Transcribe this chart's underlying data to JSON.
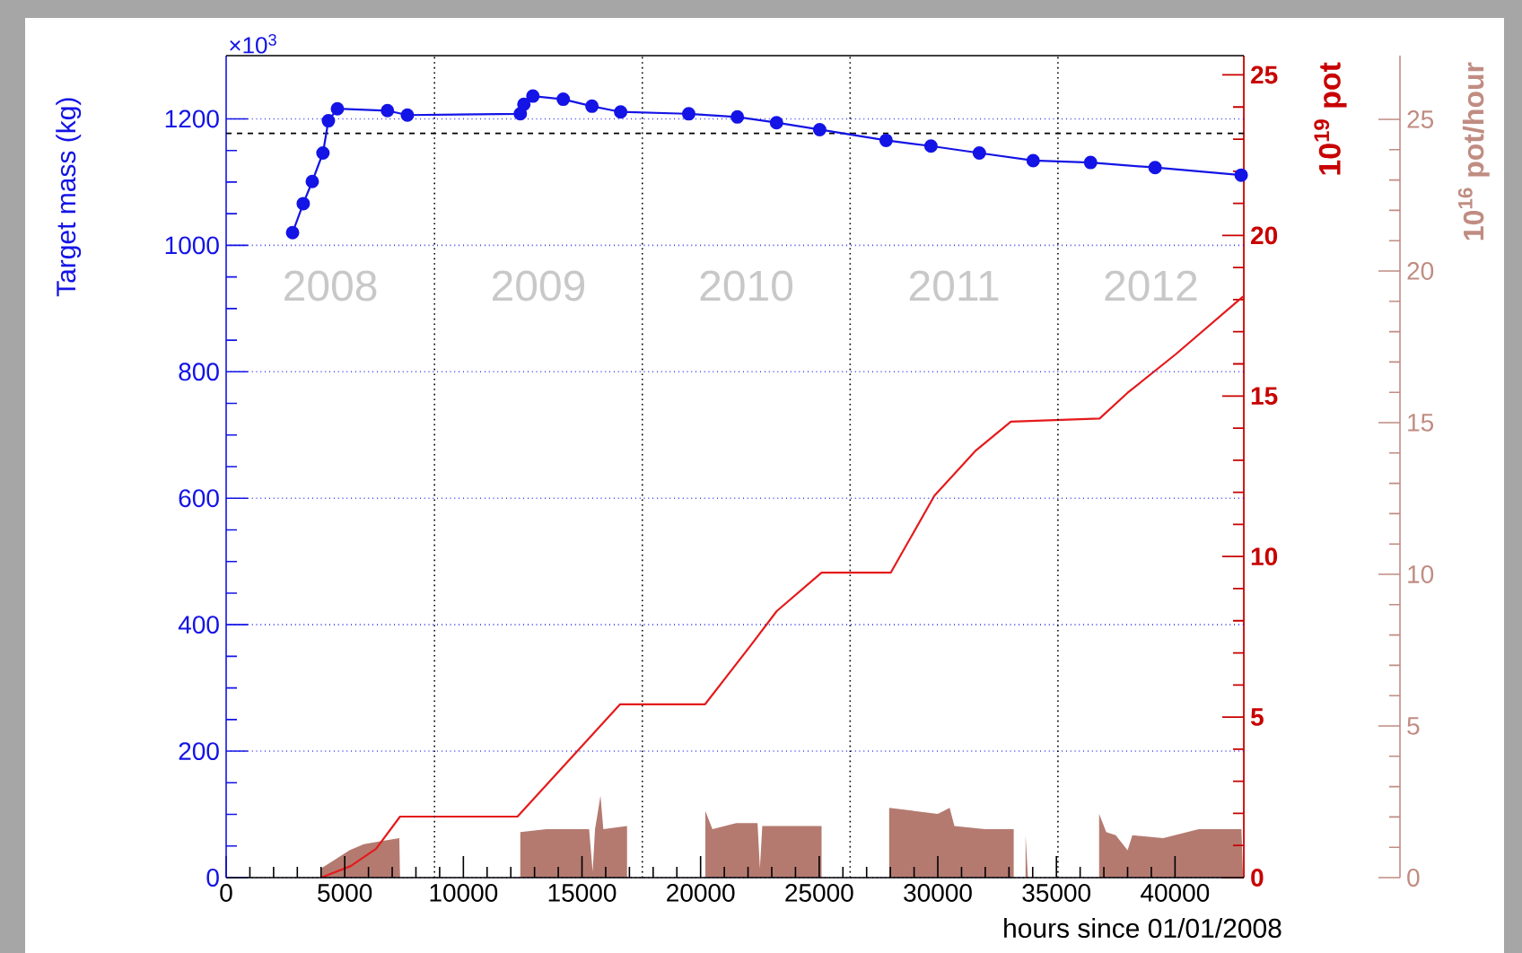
{
  "chart_data": {
    "type": "line",
    "xlabel": "hours since 01/01/2008",
    "ylabel": "Target mass (kg)",
    "y2label": "10$^{19}$ pot",
    "y3label": "10$^{16}$ pot/hour",
    "xlim": [
      0,
      42900
    ],
    "xticks": [
      0,
      5000,
      10000,
      15000,
      20000,
      25000,
      30000,
      35000,
      40000
    ],
    "ylim": [
      0,
      1300
    ],
    "yticks": [
      0,
      200,
      400,
      600,
      800,
      1000,
      1200
    ],
    "y2lim": [
      0,
      25.6
    ],
    "y2ticks": [
      0,
      5,
      10,
      15,
      20,
      25
    ],
    "y3lim": [
      0,
      27.1
    ],
    "y3ticks": [
      0,
      5,
      10,
      15,
      20,
      25
    ],
    "grid": "y",
    "annotations": [
      "×10$^{3}$",
      "2008",
      "2009",
      "2010",
      "2011",
      "2012"
    ],
    "ref_lines": [
      {
        "axis": "y",
        "value": 1177,
        "line_style": "dashed",
        "color": "#000000"
      },
      {
        "axis": "x",
        "value": 8784,
        "line_style": "dotted",
        "color": "#000000"
      },
      {
        "axis": "x",
        "value": 17544,
        "line_style": "dotted",
        "color": "#000000"
      },
      {
        "axis": "x",
        "value": 26304,
        "line_style": "dotted",
        "color": "#000000"
      },
      {
        "axis": "x",
        "value": 35064,
        "line_style": "dotted",
        "color": "#000000"
      }
    ],
    "series": [
      {
        "type": "area",
        "axis": "y3",
        "color": "#b47a70",
        "x": [
          0,
          4000,
          4000,
          4600,
          5200,
          5800,
          6500,
          7300,
          7330,
          12400,
          12400,
          13500,
          14500,
          15300,
          15450,
          15550,
          15780,
          15900,
          16900,
          16900,
          20200,
          20200,
          20500,
          21500,
          22400,
          22500,
          22600,
          24000,
          25100,
          25100,
          27950,
          27950,
          29000,
          30000,
          30500,
          30700,
          32000,
          33200,
          33200,
          33700,
          33700,
          33800,
          36800,
          36800,
          37100,
          37500,
          38000,
          38200,
          39500,
          41000,
          42800,
          42870
        ],
        "values": [
          0,
          0,
          0.3,
          0.6,
          0.9,
          1.1,
          1.2,
          1.3,
          0,
          0,
          1.5,
          1.6,
          1.6,
          1.6,
          0.2,
          1.6,
          2.7,
          1.6,
          1.7,
          0,
          0,
          2.2,
          1.6,
          1.8,
          1.8,
          0.3,
          1.7,
          1.7,
          1.7,
          0,
          0,
          2.3,
          2.2,
          2.1,
          2.3,
          1.7,
          1.6,
          1.6,
          0,
          0,
          1.4,
          0,
          0,
          2.1,
          1.5,
          1.4,
          0.9,
          1.4,
          1.3,
          1.6,
          1.6,
          0
        ]
      },
      {
        "type": "line",
        "axis": "y2",
        "color": "#e41a1c",
        "marker": "none",
        "x": [
          4000,
          5250,
          6320,
          7330,
          12280,
          16610,
          20190,
          22080,
          23210,
          25100,
          28020,
          29860,
          31600,
          33080,
          36820,
          38000,
          40030,
          42870
        ],
        "values": [
          0,
          0.36,
          0.9,
          1.9,
          1.9,
          5.4,
          5.4,
          7.2,
          8.3,
          9.5,
          9.5,
          11.9,
          13.3,
          14.2,
          14.3,
          15.1,
          16.3,
          18.1
        ]
      },
      {
        "axis": "y",
        "color": "#1414e6",
        "marker": "circle",
        "x": [
          2800,
          3250,
          3630,
          4080,
          4310,
          4690,
          6800,
          7640,
          12400,
          12550,
          12930,
          14210,
          15420,
          16630,
          19500,
          21550,
          23200,
          25020,
          27820,
          29710,
          31750,
          34020,
          36440,
          39160,
          42790
        ],
        "values": [
          1020,
          1066,
          1101,
          1146,
          1197,
          1216,
          1213,
          1206,
          1208,
          1223,
          1236,
          1231,
          1220,
          1211,
          1208,
          1203,
          1194,
          1183,
          1166,
          1157,
          1146,
          1134,
          1131,
          1123,
          1111
        ]
      }
    ]
  }
}
